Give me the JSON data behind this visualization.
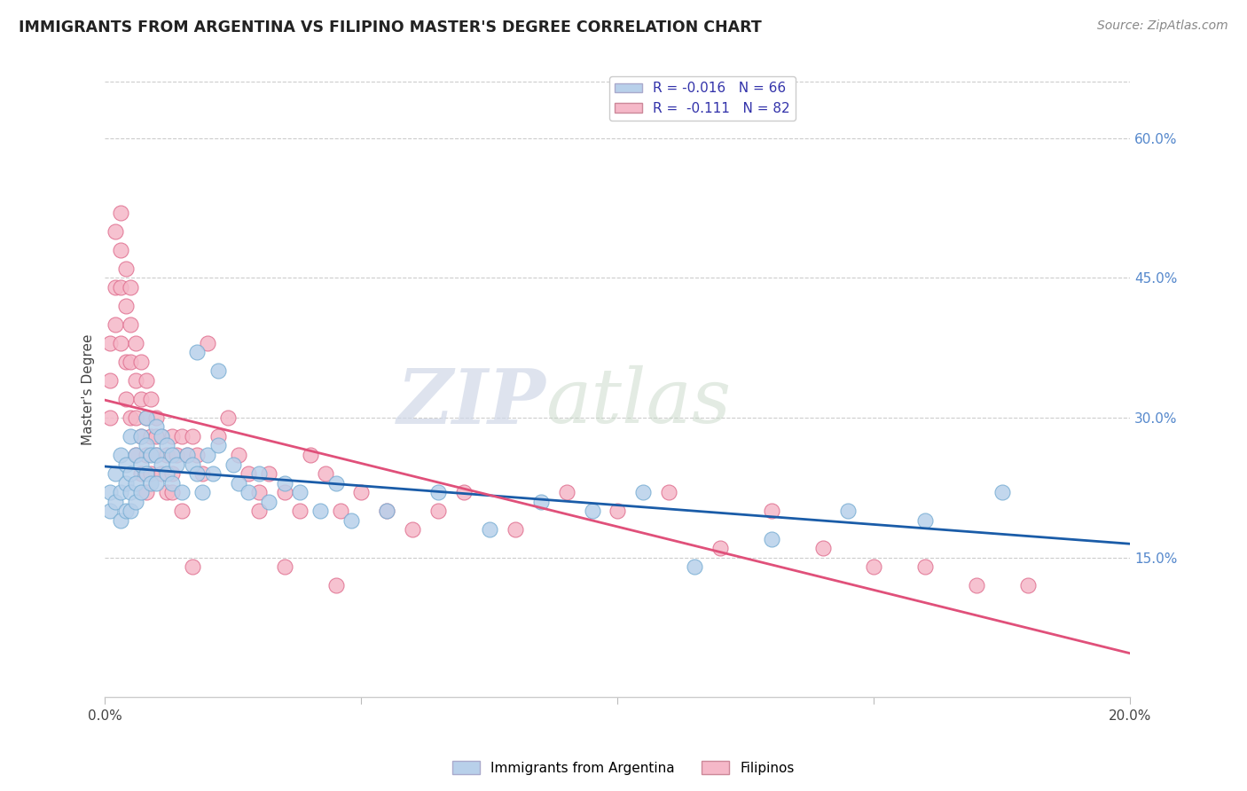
{
  "title": "IMMIGRANTS FROM ARGENTINA VS FILIPINO MASTER'S DEGREE CORRELATION CHART",
  "source": "Source: ZipAtlas.com",
  "ylabel": "Master's Degree",
  "xlim": [
    0.0,
    0.2
  ],
  "ylim": [
    0.0,
    0.66
  ],
  "xticks": [
    0.0,
    0.05,
    0.1,
    0.15,
    0.2
  ],
  "xticklabels": [
    "0.0%",
    "",
    "",
    "",
    "20.0%"
  ],
  "yticks_right": [
    0.15,
    0.3,
    0.45,
    0.6
  ],
  "ytick_labels_right": [
    "15.0%",
    "30.0%",
    "45.0%",
    "60.0%"
  ],
  "watermark_zip": "ZIP",
  "watermark_atlas": "atlas",
  "series1_color": "#b8d0ea",
  "series1_edge": "#7aafd4",
  "series2_color": "#f5b8c8",
  "series2_edge": "#e07090",
  "trendline1_color": "#1a5ca8",
  "trendline2_color": "#e0507a",
  "argentina_x": [
    0.001,
    0.001,
    0.002,
    0.002,
    0.003,
    0.003,
    0.003,
    0.004,
    0.004,
    0.004,
    0.005,
    0.005,
    0.005,
    0.005,
    0.006,
    0.006,
    0.006,
    0.007,
    0.007,
    0.007,
    0.008,
    0.008,
    0.008,
    0.009,
    0.009,
    0.01,
    0.01,
    0.01,
    0.011,
    0.011,
    0.012,
    0.012,
    0.013,
    0.013,
    0.014,
    0.015,
    0.016,
    0.017,
    0.018,
    0.019,
    0.02,
    0.021,
    0.022,
    0.025,
    0.026,
    0.028,
    0.03,
    0.032,
    0.035,
    0.038,
    0.042,
    0.045,
    0.048,
    0.055,
    0.065,
    0.075,
    0.085,
    0.095,
    0.105,
    0.115,
    0.13,
    0.145,
    0.16,
    0.175,
    0.018,
    0.022
  ],
  "argentina_y": [
    0.22,
    0.2,
    0.24,
    0.21,
    0.26,
    0.22,
    0.19,
    0.25,
    0.23,
    0.2,
    0.28,
    0.24,
    0.22,
    0.2,
    0.26,
    0.23,
    0.21,
    0.28,
    0.25,
    0.22,
    0.3,
    0.27,
    0.24,
    0.26,
    0.23,
    0.29,
    0.26,
    0.23,
    0.28,
    0.25,
    0.27,
    0.24,
    0.26,
    0.23,
    0.25,
    0.22,
    0.26,
    0.25,
    0.24,
    0.22,
    0.26,
    0.24,
    0.27,
    0.25,
    0.23,
    0.22,
    0.24,
    0.21,
    0.23,
    0.22,
    0.2,
    0.23,
    0.19,
    0.2,
    0.22,
    0.18,
    0.21,
    0.2,
    0.22,
    0.14,
    0.17,
    0.2,
    0.19,
    0.22,
    0.37,
    0.35
  ],
  "filipino_x": [
    0.001,
    0.001,
    0.001,
    0.002,
    0.002,
    0.002,
    0.003,
    0.003,
    0.003,
    0.003,
    0.004,
    0.004,
    0.004,
    0.004,
    0.005,
    0.005,
    0.005,
    0.005,
    0.006,
    0.006,
    0.006,
    0.006,
    0.007,
    0.007,
    0.007,
    0.007,
    0.008,
    0.008,
    0.008,
    0.009,
    0.009,
    0.009,
    0.01,
    0.01,
    0.011,
    0.011,
    0.012,
    0.012,
    0.013,
    0.013,
    0.014,
    0.015,
    0.016,
    0.017,
    0.018,
    0.019,
    0.02,
    0.022,
    0.024,
    0.026,
    0.028,
    0.03,
    0.032,
    0.035,
    0.038,
    0.04,
    0.043,
    0.046,
    0.05,
    0.055,
    0.06,
    0.065,
    0.07,
    0.08,
    0.09,
    0.1,
    0.11,
    0.12,
    0.13,
    0.14,
    0.15,
    0.16,
    0.17,
    0.18,
    0.013,
    0.015,
    0.017,
    0.03,
    0.035,
    0.045,
    0.008,
    0.01
  ],
  "filipino_y": [
    0.38,
    0.34,
    0.3,
    0.5,
    0.44,
    0.4,
    0.52,
    0.48,
    0.44,
    0.38,
    0.46,
    0.42,
    0.36,
    0.32,
    0.44,
    0.4,
    0.36,
    0.3,
    0.38,
    0.34,
    0.3,
    0.26,
    0.36,
    0.32,
    0.28,
    0.24,
    0.34,
    0.3,
    0.26,
    0.32,
    0.28,
    0.24,
    0.3,
    0.26,
    0.28,
    0.24,
    0.26,
    0.22,
    0.28,
    0.24,
    0.26,
    0.28,
    0.26,
    0.28,
    0.26,
    0.24,
    0.38,
    0.28,
    0.3,
    0.26,
    0.24,
    0.22,
    0.24,
    0.22,
    0.2,
    0.26,
    0.24,
    0.2,
    0.22,
    0.2,
    0.18,
    0.2,
    0.22,
    0.18,
    0.22,
    0.2,
    0.22,
    0.16,
    0.2,
    0.16,
    0.14,
    0.14,
    0.12,
    0.12,
    0.22,
    0.2,
    0.14,
    0.2,
    0.14,
    0.12,
    0.22,
    0.28
  ]
}
